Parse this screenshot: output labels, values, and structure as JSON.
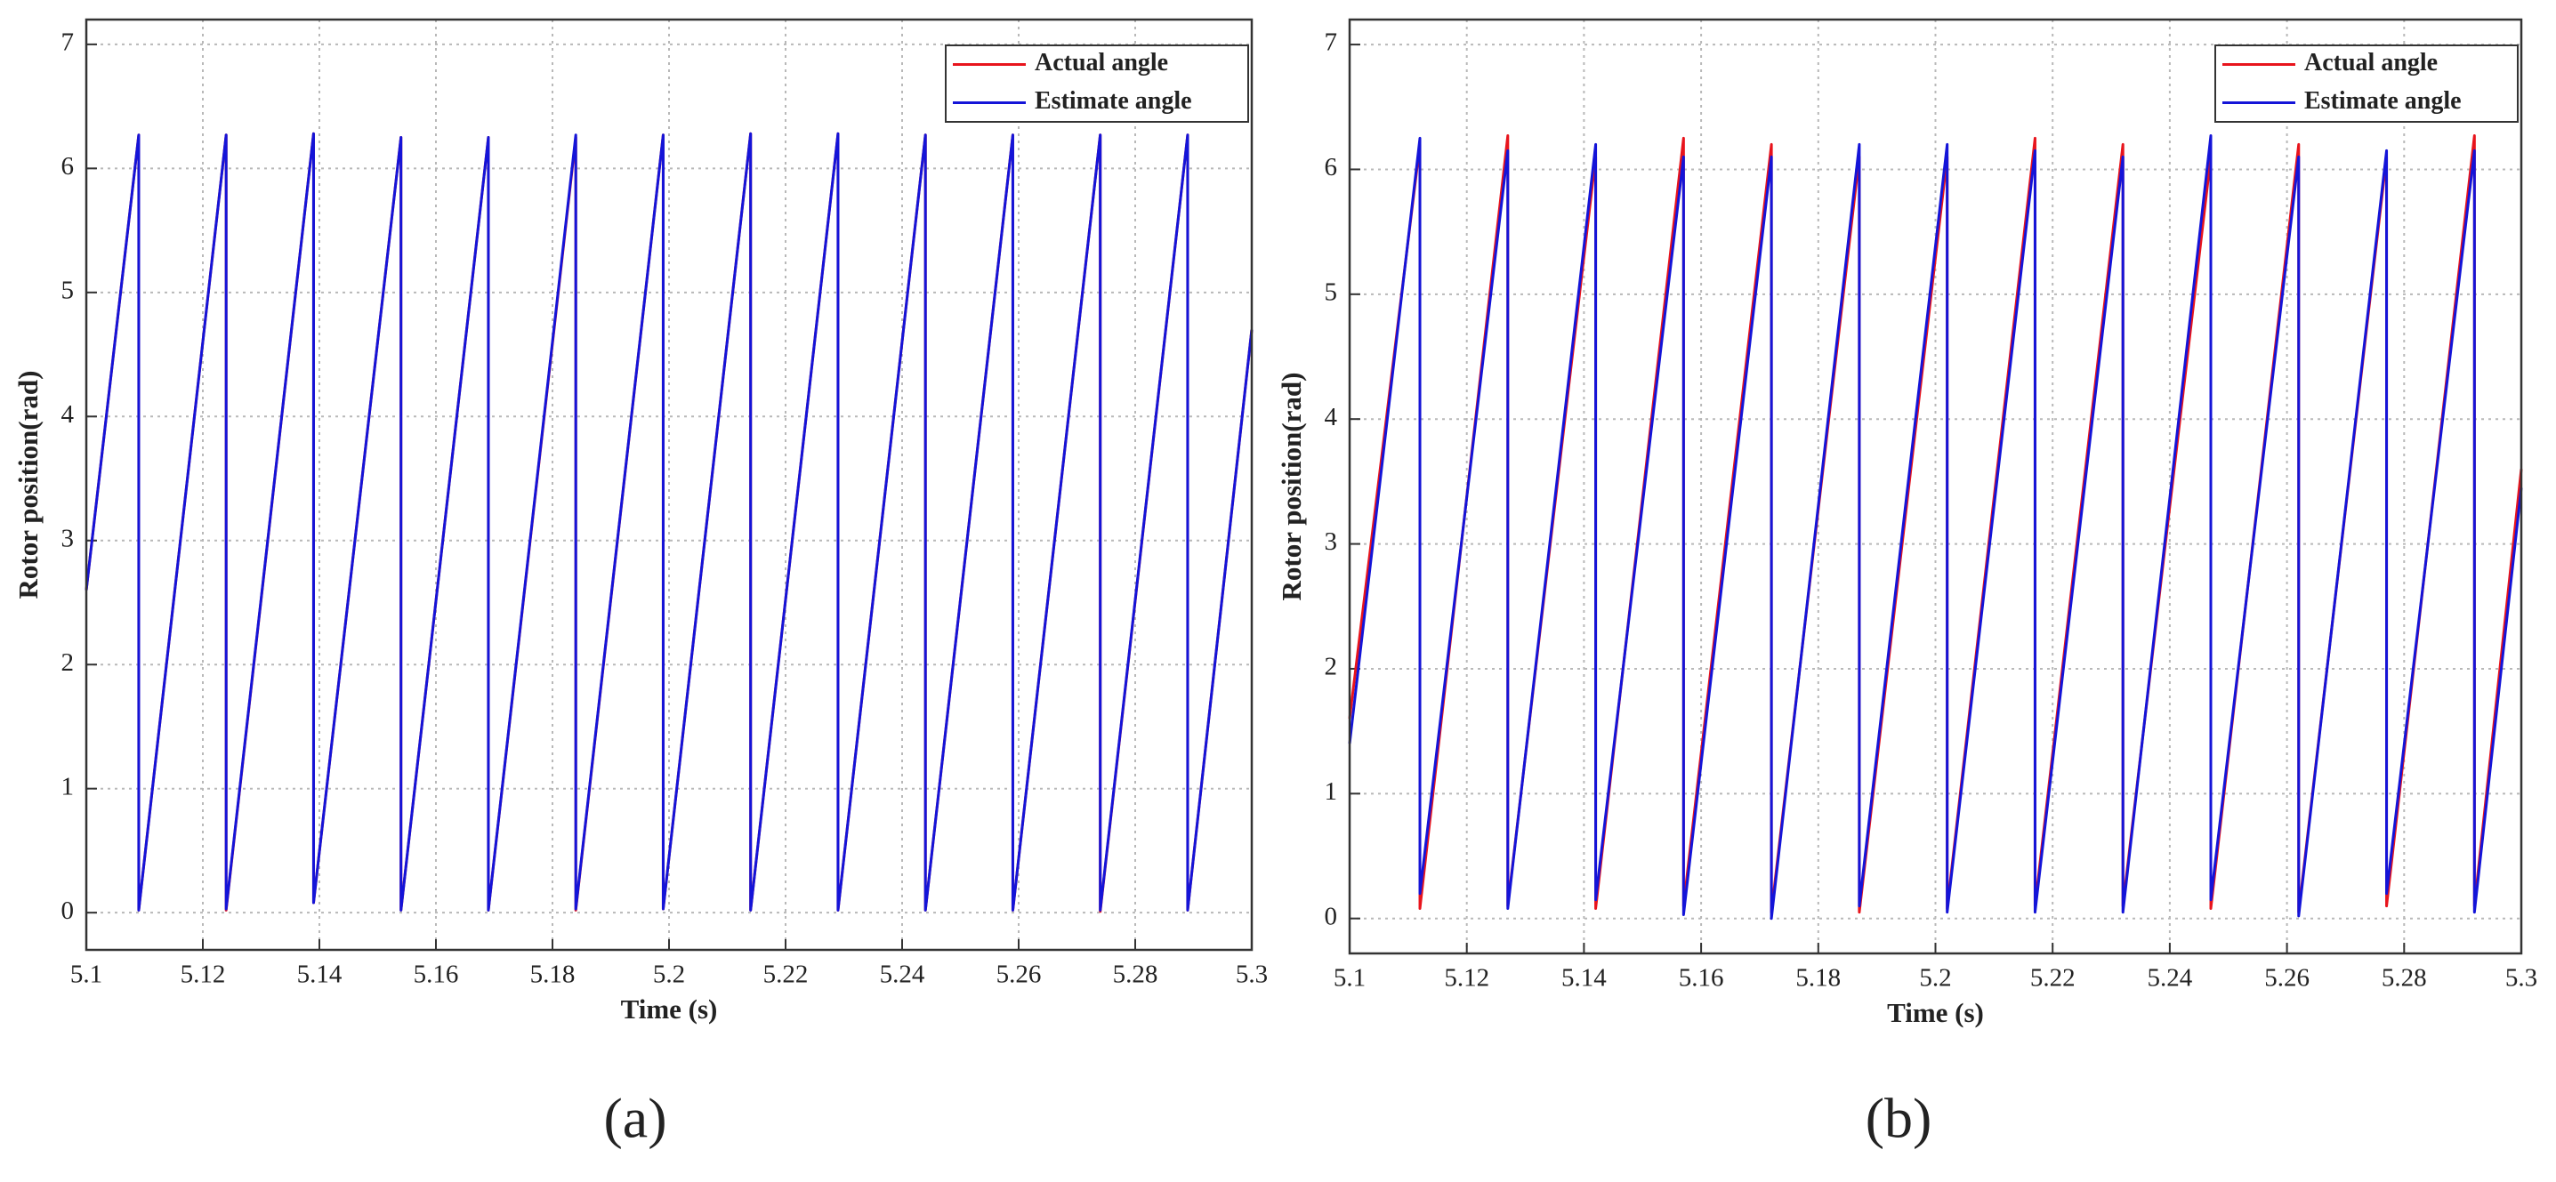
{
  "chart_data": [
    {
      "type": "line",
      "caption": "(a)",
      "xlabel": "Time (s)",
      "ylabel": "Rotor position(rad)",
      "xlim": [
        5.1,
        5.3
      ],
      "ylim": [
        -0.3,
        7.2
      ],
      "xticks": [
        5.1,
        5.12,
        5.14,
        5.16,
        5.18,
        5.2,
        5.22,
        5.24,
        5.26,
        5.28,
        5.3
      ],
      "yticks": [
        0,
        1,
        2,
        3,
        4,
        5,
        6,
        7
      ],
      "grid": true,
      "legend": "upper right",
      "x": [
        5.1,
        5.109,
        5.109,
        5.124,
        5.124,
        5.139,
        5.139,
        5.154,
        5.154,
        5.169,
        5.169,
        5.184,
        5.184,
        5.199,
        5.199,
        5.214,
        5.214,
        5.229,
        5.229,
        5.244,
        5.244,
        5.259,
        5.259,
        5.274,
        5.274,
        5.289,
        5.289,
        5.3
      ],
      "series": [
        {
          "name": "Actual angle",
          "color": "#e8141c",
          "values": [
            2.6,
            6.27,
            0.02,
            6.27,
            0.02,
            6.28,
            0.08,
            6.25,
            0.02,
            6.25,
            0.02,
            6.25,
            0.02,
            6.27,
            0.03,
            6.28,
            0.02,
            6.28,
            0.02,
            6.27,
            0.02,
            6.27,
            0.02,
            6.27,
            0.01,
            6.27,
            0.02,
            4.7
          ]
        },
        {
          "name": "Estimate angle",
          "color": "#1414d8",
          "values": [
            2.6,
            6.27,
            0.02,
            6.27,
            0.03,
            6.28,
            0.08,
            6.25,
            0.02,
            6.25,
            0.02,
            6.27,
            0.03,
            6.27,
            0.03,
            6.28,
            0.02,
            6.28,
            0.02,
            6.27,
            0.02,
            6.27,
            0.02,
            6.27,
            0.02,
            6.27,
            0.02,
            4.7
          ]
        }
      ]
    },
    {
      "type": "line",
      "caption": "(b)",
      "xlabel": "Time (s)",
      "ylabel": "Rotor position(rad)",
      "xlim": [
        5.1,
        5.3
      ],
      "ylim": [
        -0.28,
        7.2
      ],
      "xticks": [
        5.1,
        5.12,
        5.14,
        5.16,
        5.18,
        5.2,
        5.22,
        5.24,
        5.26,
        5.28,
        5.3
      ],
      "yticks": [
        0,
        1,
        2,
        3,
        4,
        5,
        6,
        7
      ],
      "grid": true,
      "legend": "upper right",
      "x": [
        5.1,
        5.112,
        5.112,
        5.127,
        5.127,
        5.142,
        5.142,
        5.157,
        5.157,
        5.172,
        5.172,
        5.187,
        5.187,
        5.202,
        5.202,
        5.217,
        5.217,
        5.232,
        5.232,
        5.247,
        5.247,
        5.262,
        5.262,
        5.277,
        5.277,
        5.292,
        5.292,
        5.3
      ],
      "series": [
        {
          "name": "Actual angle",
          "color": "#e8141c",
          "values": [
            1.6,
            6.2,
            0.08,
            6.27,
            0.1,
            6.1,
            0.08,
            6.25,
            0.1,
            6.2,
            0.05,
            6.1,
            0.05,
            6.1,
            0.08,
            6.25,
            0.1,
            6.2,
            0.1,
            6.1,
            0.08,
            6.2,
            0.05,
            6.1,
            0.1,
            6.27,
            0.1,
            3.6
          ]
        },
        {
          "name": "Estimate angle",
          "color": "#1414d8",
          "values": [
            1.4,
            6.25,
            0.2,
            6.15,
            0.08,
            6.2,
            0.15,
            6.1,
            0.03,
            6.1,
            0.0,
            6.2,
            0.1,
            6.2,
            0.05,
            6.15,
            0.05,
            6.1,
            0.05,
            6.27,
            0.15,
            6.1,
            0.02,
            6.15,
            0.2,
            6.15,
            0.05,
            3.45
          ]
        }
      ]
    }
  ]
}
